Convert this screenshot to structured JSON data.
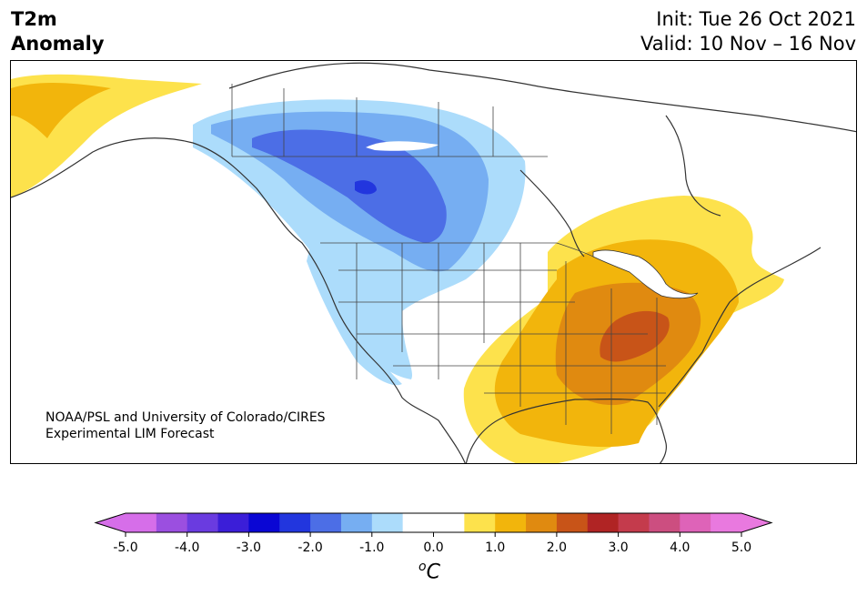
{
  "header": {
    "title_line1": "T2m",
    "title_line2": "Anomaly",
    "init": "Init: Tue 26 Oct 2021",
    "valid": "Valid: 10 Nov – 16 Nov"
  },
  "credit": {
    "line1": "NOAA/PSL and University of Colorado/CIRES",
    "line2": "Experimental LIM Forecast"
  },
  "colorbar": {
    "unit_symbol": "o",
    "unit_letter": "C",
    "ticks": [
      "-5.0",
      "-4.0",
      "-3.0",
      "-2.0",
      "-1.0",
      "0.0",
      "1.0",
      "2.0",
      "3.0",
      "4.0",
      "5.0"
    ],
    "colors": [
      "#d66ee9",
      "#9b4fe0",
      "#6a3be0",
      "#3b1ed8",
      "#0a06d4",
      "#2236de",
      "#4c6ee6",
      "#76aef2",
      "#acdcfb",
      "#ffffff",
      "#ffffff",
      "#fde24c",
      "#f2b50c",
      "#e08a10",
      "#c85418",
      "#b02424",
      "#c43b4c",
      "#cc4e80",
      "#de63b8",
      "#e979df"
    ],
    "under_color": "#d66ee9",
    "over_color": "#e979df"
  },
  "legend_colors": {
    "cold_1": "#acdcfb",
    "cold_2": "#76aef2",
    "cold_3": "#4c6ee6",
    "cold_4": "#2236de",
    "warm_1": "#fde24c",
    "warm_2": "#f2b50c",
    "warm_3": "#e08a10",
    "warm_4": "#c85418"
  }
}
